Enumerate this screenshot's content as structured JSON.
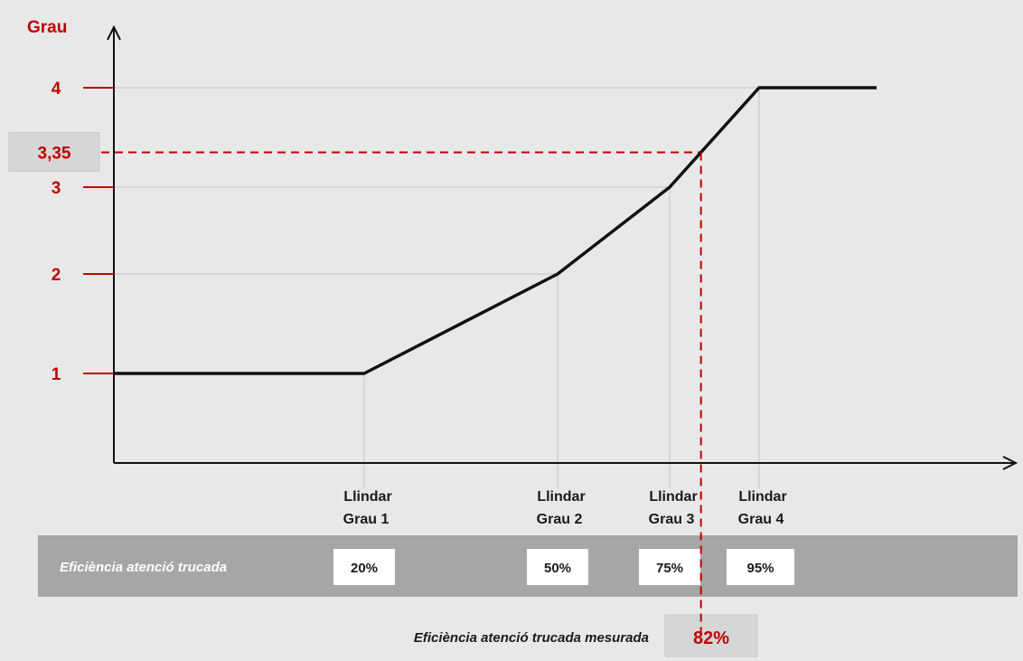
{
  "chart_data": {
    "type": "line",
    "ylabel": "Grau",
    "xlabel": "",
    "y_ticks": [
      "1",
      "2",
      "3",
      "4"
    ],
    "series": [
      {
        "x": [
          0,
          20,
          50,
          75,
          95,
          105
        ],
        "y": [
          1,
          1,
          2,
          3,
          4,
          4
        ]
      }
    ],
    "thresholds": [
      {
        "label_line1": "Llindar",
        "label_line2": "Grau 1",
        "efficiency": "20%",
        "x": 20,
        "grade": 1
      },
      {
        "label_line1": "Llindar",
        "label_line2": "Grau 2",
        "efficiency": "50%",
        "x": 50,
        "grade": 2
      },
      {
        "label_line1": "Llindar",
        "label_line2": "Grau 3",
        "efficiency": "75%",
        "x": 75,
        "grade": 3
      },
      {
        "label_line1": "Llindar",
        "label_line2": "Grau  4",
        "efficiency": "95%",
        "x": 95,
        "grade": 4
      }
    ],
    "band_label": "Eficiència  atenció  trucada",
    "measured": {
      "label": "Eficiència  atenció  trucada  mesurada",
      "x": 82,
      "x_text": "82%",
      "y": 3.35,
      "y_text": "3,35"
    },
    "colors": {
      "line": "#111111",
      "accent": "#c00000",
      "axis": "#111111",
      "grid": "#cfcfcf",
      "band": "#a6a6a6",
      "background": "#e8e8e8"
    },
    "grid": true
  }
}
